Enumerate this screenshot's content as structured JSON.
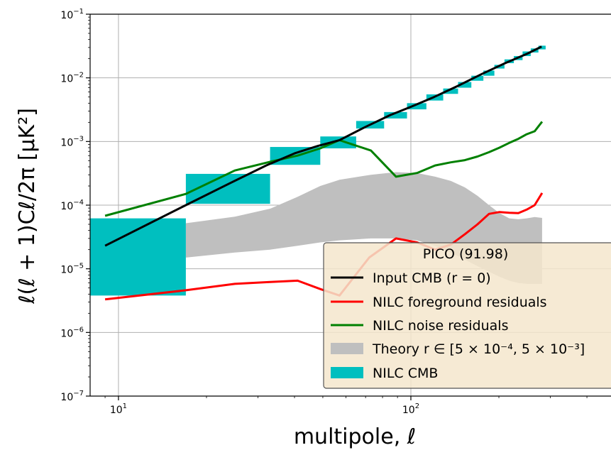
{
  "chart_data": {
    "type": "line",
    "xscale": "log",
    "yscale": "log",
    "xlim": [
      8,
      500
    ],
    "ylim": [
      1e-07,
      0.1
    ],
    "x_ticks": [
      {
        "value": 10,
        "mantissa": "10",
        "exp": "1"
      },
      {
        "value": 100,
        "mantissa": "10",
        "exp": "2"
      }
    ],
    "y_ticks": [
      {
        "value": 1e-07,
        "mantissa": "10",
        "exp": "−7"
      },
      {
        "value": 1e-06,
        "mantissa": "10",
        "exp": "−6"
      },
      {
        "value": 1e-05,
        "mantissa": "10",
        "exp": "−5"
      },
      {
        "value": 0.0001,
        "mantissa": "10",
        "exp": "−4"
      },
      {
        "value": 0.001,
        "mantissa": "10",
        "exp": "−3"
      },
      {
        "value": 0.01,
        "mantissa": "10",
        "exp": "−2"
      },
      {
        "value": 0.1,
        "mantissa": "10",
        "exp": "−1"
      }
    ],
    "xlabel": "multipole, ℓ",
    "ylabel": "ℓ(ℓ + 1)Cℓ/2π [μK²]",
    "grid": true,
    "legend": {
      "title": "PICO (91.98)",
      "position": "lower right",
      "entries": [
        {
          "label": "Input CMB (r = 0)",
          "kind": "line",
          "color": "#000000"
        },
        {
          "label": "NILC foreground residuals",
          "kind": "line",
          "color": "#ff0000"
        },
        {
          "label": "NILC noise residuals",
          "kind": "line",
          "color": "#008000"
        },
        {
          "label": "Theory r ∈ [5 × 10⁻⁴, 5 × 10⁻³]",
          "kind": "patch",
          "color": "#bfbfbf"
        },
        {
          "label": "NILC CMB",
          "kind": "patch",
          "color": "#00bfbf"
        }
      ]
    },
    "series": [
      {
        "name": "Input CMB (r = 0)",
        "color": "#000000",
        "points": [
          [
            9,
            2.3e-05
          ],
          [
            17,
            0.0001
          ],
          [
            24,
            0.00022
          ],
          [
            32,
            0.00042
          ],
          [
            40,
            0.00065
          ],
          [
            48,
            0.00085
          ],
          [
            57,
            0.00105
          ],
          [
            70,
            0.0017
          ],
          [
            85,
            0.0026
          ],
          [
            100,
            0.0035
          ],
          [
            120,
            0.005
          ],
          [
            145,
            0.0075
          ],
          [
            175,
            0.0115
          ],
          [
            210,
            0.017
          ],
          [
            250,
            0.024
          ],
          [
            280,
            0.031
          ]
        ]
      },
      {
        "name": "NILC foreground residuals",
        "color": "#ff0000",
        "points": [
          [
            9,
            3.3e-06
          ],
          [
            17,
            4.6e-06
          ],
          [
            25,
            5.8e-06
          ],
          [
            33,
            6.2e-06
          ],
          [
            41,
            6.5e-06
          ],
          [
            49,
            4.8e-06
          ],
          [
            57,
            3.8e-06
          ],
          [
            72,
            1.5e-05
          ],
          [
            89,
            3e-05
          ],
          [
            105,
            2.6e-05
          ],
          [
            121,
            2e-05
          ],
          [
            137,
            2.4e-05
          ],
          [
            153,
            3.5e-05
          ],
          [
            169,
            5e-05
          ],
          [
            185,
            7.3e-05
          ],
          [
            201,
            7.8e-05
          ],
          [
            217,
            7.6e-05
          ],
          [
            233,
            7.5e-05
          ],
          [
            249,
            8.5e-05
          ],
          [
            265,
            0.0001
          ],
          [
            281,
            0.000155
          ]
        ]
      },
      {
        "name": "NILC noise residuals",
        "color": "#008000",
        "points": [
          [
            9,
            6.8e-05
          ],
          [
            17,
            0.00015
          ],
          [
            25,
            0.00035
          ],
          [
            33,
            0.00048
          ],
          [
            41,
            0.0006
          ],
          [
            49,
            0.00078
          ],
          [
            57,
            0.00105
          ],
          [
            73,
            0.00072
          ],
          [
            89,
            0.00028
          ],
          [
            105,
            0.00032
          ],
          [
            121,
            0.00042
          ],
          [
            137,
            0.00047
          ],
          [
            153,
            0.00051
          ],
          [
            169,
            0.00058
          ],
          [
            185,
            0.00068
          ],
          [
            201,
            0.0008
          ],
          [
            217,
            0.00095
          ],
          [
            233,
            0.0011
          ],
          [
            249,
            0.0013
          ],
          [
            265,
            0.00145
          ],
          [
            281,
            0.00205
          ]
        ]
      }
    ],
    "theory_band": {
      "name": "Theory r ∈ [5 × 10⁻⁴, 5 × 10⁻³]",
      "color": "#bfbfbf",
      "lower": [
        [
          17,
          1.5e-05
        ],
        [
          25,
          1.8e-05
        ],
        [
          33,
          2e-05
        ],
        [
          41,
          2.3e-05
        ],
        [
          49,
          2.6e-05
        ],
        [
          57,
          2.8e-05
        ],
        [
          73,
          3e-05
        ],
        [
          89,
          3e-05
        ],
        [
          105,
          2.8e-05
        ],
        [
          121,
          2.3e-05
        ],
        [
          137,
          1.8e-05
        ],
        [
          153,
          1.4e-05
        ],
        [
          169,
          1.1e-05
        ],
        [
          185,
          9e-06
        ],
        [
          201,
          7.5e-06
        ],
        [
          217,
          6.5e-06
        ],
        [
          233,
          6e-06
        ],
        [
          249,
          5.8e-06
        ],
        [
          265,
          5.8e-06
        ],
        [
          281,
          5.8e-06
        ]
      ],
      "upper": [
        [
          17,
          5.2e-05
        ],
        [
          25,
          6.6e-05
        ],
        [
          33,
          8.8e-05
        ],
        [
          41,
          0.000135
        ],
        [
          49,
          0.0002
        ],
        [
          57,
          0.00025
        ],
        [
          73,
          0.0003
        ],
        [
          89,
          0.00033
        ],
        [
          105,
          0.00032
        ],
        [
          121,
          0.00028
        ],
        [
          137,
          0.00024
        ],
        [
          153,
          0.00019
        ],
        [
          169,
          0.00014
        ],
        [
          185,
          0.0001
        ],
        [
          201,
          7.5e-05
        ],
        [
          217,
          6.2e-05
        ],
        [
          233,
          6e-05
        ],
        [
          249,
          6.2e-05
        ],
        [
          265,
          6.5e-05
        ],
        [
          281,
          6.3e-05
        ]
      ]
    },
    "nilc_cmb_bins": [
      {
        "x": [
          8,
          17
        ],
        "y": [
          3.8e-06,
          6.2e-05
        ]
      },
      {
        "x": [
          17,
          33
        ],
        "y": [
          0.000105,
          0.00031
        ]
      },
      {
        "x": [
          33,
          49
        ],
        "y": [
          0.00043,
          0.00082
        ]
      },
      {
        "x": [
          49,
          65
        ],
        "y": [
          0.00078,
          0.0012
        ]
      },
      {
        "x": [
          65,
          81
        ],
        "y": [
          0.0016,
          0.0021
        ]
      },
      {
        "x": [
          81,
          97
        ],
        "y": [
          0.0023,
          0.0029
        ]
      },
      {
        "x": [
          97,
          113
        ],
        "y": [
          0.0032,
          0.004
        ]
      },
      {
        "x": [
          113,
          129
        ],
        "y": [
          0.0044,
          0.0055
        ]
      },
      {
        "x": [
          129,
          145
        ],
        "y": [
          0.0056,
          0.0068
        ]
      },
      {
        "x": [
          145,
          161
        ],
        "y": [
          0.007,
          0.0086
        ]
      },
      {
        "x": [
          161,
          177
        ],
        "y": [
          0.009,
          0.0108
        ]
      },
      {
        "x": [
          177,
          193
        ],
        "y": [
          0.0108,
          0.013
        ]
      },
      {
        "x": [
          193,
          209
        ],
        "y": [
          0.014,
          0.016
        ]
      },
      {
        "x": [
          209,
          225
        ],
        "y": [
          0.017,
          0.0195
        ]
      },
      {
        "x": [
          225,
          241
        ],
        "y": [
          0.019,
          0.022
        ]
      },
      {
        "x": [
          241,
          257
        ],
        "y": [
          0.022,
          0.026
        ]
      },
      {
        "x": [
          257,
          273
        ],
        "y": [
          0.025,
          0.029
        ]
      },
      {
        "x": [
          273,
          289
        ],
        "y": [
          0.028,
          0.032
        ]
      }
    ]
  }
}
